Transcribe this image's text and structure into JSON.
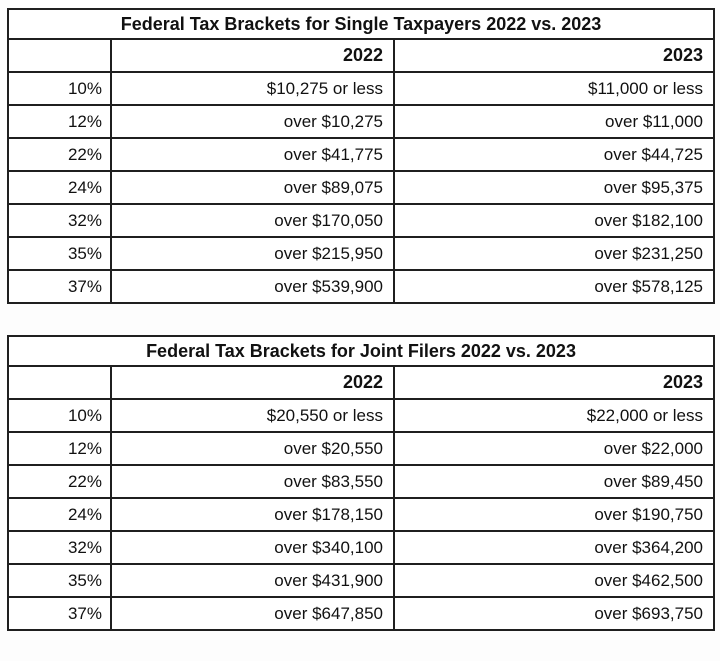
{
  "colors": {
    "border": "#1f1f1f",
    "text": "#111111",
    "background": "#ffffff"
  },
  "chart_data": [
    {
      "type": "table",
      "title": "Federal Tax Brackets for Single Taxpayers 2022 vs. 2023",
      "columns": [
        "",
        "2022",
        "2023"
      ],
      "rows": [
        [
          "10%",
          "$10,275 or less",
          "$11,000 or less"
        ],
        [
          "12%",
          "over $10,275",
          "over $11,000"
        ],
        [
          "22%",
          "over $41,775",
          "over $44,725"
        ],
        [
          "24%",
          "over $89,075",
          "over $95,375"
        ],
        [
          "32%",
          "over $170,050",
          "over $182,100"
        ],
        [
          "35%",
          "over $215,950",
          "over $231,250"
        ],
        [
          "37%",
          "over $539,900",
          "over $578,125"
        ]
      ]
    },
    {
      "type": "table",
      "title": "Federal Tax Brackets for Joint Filers 2022 vs. 2023",
      "columns": [
        "",
        "2022",
        "2023"
      ],
      "rows": [
        [
          "10%",
          "$20,550 or less",
          "$22,000 or less"
        ],
        [
          "12%",
          "over $20,550",
          "over $22,000"
        ],
        [
          "22%",
          "over $83,550",
          "over $89,450"
        ],
        [
          "24%",
          "over $178,150",
          "over $190,750"
        ],
        [
          "32%",
          "over $340,100",
          "over $364,200"
        ],
        [
          "35%",
          "over $431,900",
          "over $462,500"
        ],
        [
          "37%",
          "over $647,850",
          "over $693,750"
        ]
      ]
    }
  ]
}
